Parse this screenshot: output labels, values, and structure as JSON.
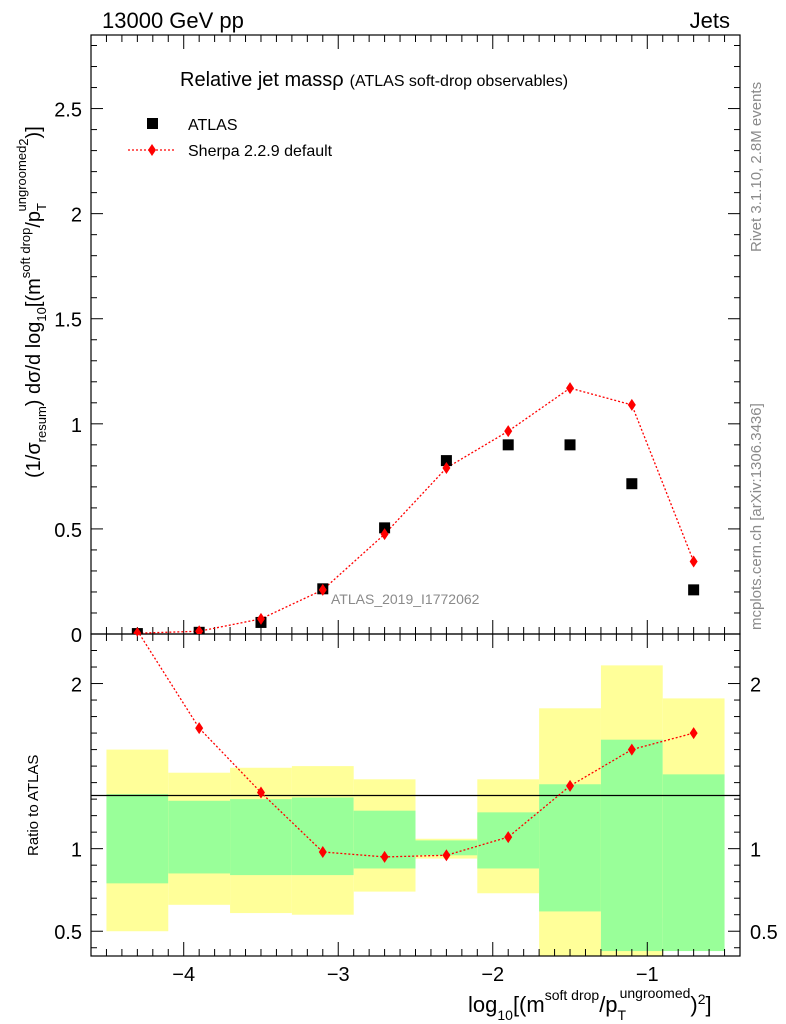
{
  "header": {
    "left": "13000 GeV pp",
    "right": "Jets"
  },
  "title": {
    "main": "Relative jet massρ",
    "sub": "(ATLAS soft-drop observables)"
  },
  "side_labels": {
    "rivet": "Rivet 3.1.10,  2.8M events",
    "mcplots": "mcplots.cern.ch [arXiv:1306.3436]"
  },
  "analysis_tag": "ATLAS_2019_I1772062",
  "legend": {
    "data_label": "ATLAS",
    "mc_label": "Sherpa 2.2.9 default"
  },
  "ylabel_ratio": "Ratio to ATLAS",
  "colors": {
    "mc": "#ff0000",
    "band_inner": "#99ff99",
    "band_outer": "#ffff99",
    "data": "#000000"
  },
  "chart_data": [
    {
      "type": "scatter",
      "title": "Relative jet massρ (ATLAS soft-drop observables)",
      "xlabel": "log10[(m^soft drop/pT^ungroomed)^2]",
      "ylabel": "(1/σresum) dσ/d log10[(m^soft drop/pT^ungroomed)^2]",
      "xlim": [
        -4.6,
        -0.4
      ],
      "ylim": [
        0,
        2.85
      ],
      "yticks": [
        0,
        0.5,
        1,
        1.5,
        2,
        2.5
      ],
      "ytick_labels": [
        "0",
        "0.5",
        "1",
        "1.5",
        "2",
        "2.5"
      ],
      "xticks": [
        -4,
        -3,
        -2,
        -1
      ],
      "xtick_labels": [
        "−4",
        "−3",
        "−2",
        "−1"
      ],
      "x": [
        -4.3,
        -3.9,
        -3.5,
        -3.1,
        -2.7,
        -2.3,
        -1.9,
        -1.5,
        -1.1,
        -0.7
      ],
      "series": [
        {
          "name": "ATLAS",
          "values": [
            0.002,
            0.008,
            0.055,
            0.215,
            0.505,
            0.825,
            0.9,
            0.9,
            0.715,
            0.21
          ]
        },
        {
          "name": "Sherpa 2.2.9 default",
          "values": [
            0.004,
            0.013,
            0.072,
            0.21,
            0.475,
            0.79,
            0.965,
            1.17,
            1.09,
            0.345
          ]
        }
      ]
    },
    {
      "type": "scatter",
      "ylabel": "Ratio to ATLAS",
      "xlim": [
        -4.6,
        -0.4
      ],
      "ylim": [
        0.35,
        2.3
      ],
      "yticks": [
        0.5,
        1,
        2
      ],
      "ytick_labels": [
        "0.5",
        "1",
        "2"
      ],
      "bins": [
        [
          -4.5,
          -4.1
        ],
        [
          -4.1,
          -3.7
        ],
        [
          -3.7,
          -3.3
        ],
        [
          -3.3,
          -2.9
        ],
        [
          -2.9,
          -2.5
        ],
        [
          -2.5,
          -2.1
        ],
        [
          -2.1,
          -1.7
        ],
        [
          -1.7,
          -1.3
        ],
        [
          -1.3,
          -0.9
        ],
        [
          -0.9,
          -0.5
        ]
      ],
      "inner_band": [
        [
          0.79,
          1.33
        ],
        [
          0.85,
          1.29
        ],
        [
          0.84,
          1.3
        ],
        [
          0.84,
          1.31
        ],
        [
          0.88,
          1.23
        ],
        [
          0.96,
          1.05
        ],
        [
          0.88,
          1.22
        ],
        [
          0.62,
          1.39
        ],
        [
          0.38,
          1.66
        ],
        [
          0.38,
          1.45
        ]
      ],
      "outer_band": [
        [
          0.5,
          1.6
        ],
        [
          0.66,
          1.46
        ],
        [
          0.61,
          1.49
        ],
        [
          0.6,
          1.5
        ],
        [
          0.74,
          1.42
        ],
        [
          0.94,
          1.06
        ],
        [
          0.73,
          1.42
        ],
        [
          0.35,
          1.85
        ],
        [
          0.35,
          2.11
        ],
        [
          0.58,
          1.91
        ]
      ],
      "x": [
        -4.3,
        -3.9,
        -3.5,
        -3.1,
        -2.7,
        -2.3,
        -1.9,
        -1.5,
        -1.1,
        -0.7
      ],
      "series": [
        {
          "name": "Sherpa 2.2.9 default",
          "values": [
            2.32,
            1.73,
            1.34,
            0.98,
            0.95,
            0.96,
            1.07,
            1.38,
            1.6,
            1.7
          ]
        }
      ]
    }
  ]
}
